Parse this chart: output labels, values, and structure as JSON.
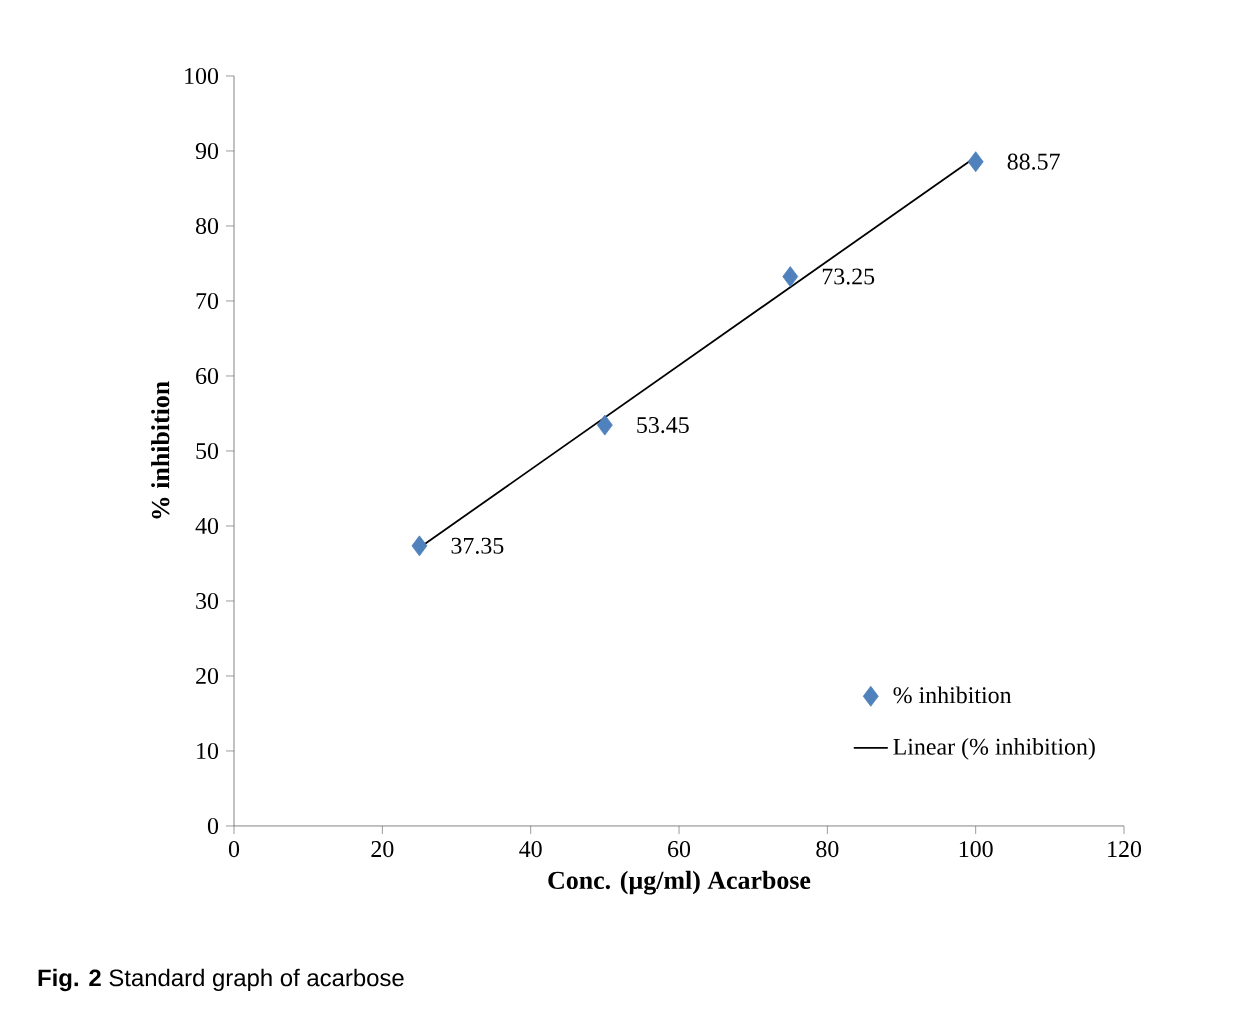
{
  "chart_data": {
    "type": "scatter",
    "xlabel": "Conc. (µg/ml) Acarbose",
    "ylabel": "% inhibition",
    "xlim": [
      0,
      120
    ],
    "xticks": [
      0,
      20,
      40,
      60,
      80,
      100,
      120
    ],
    "ylim": [
      0,
      100
    ],
    "yticks": [
      0,
      10,
      20,
      30,
      40,
      50,
      60,
      70,
      80,
      90,
      100
    ],
    "legend": "bottom right",
    "series": [
      {
        "name": "% inhibition",
        "marker": "diamond",
        "color": "#4f81bd",
        "x": [
          25,
          50,
          75,
          100
        ],
        "values": [
          37.35,
          53.45,
          73.25,
          88.57
        ],
        "value_labels": [
          "37.35",
          "53.45",
          "73.25",
          "88.57"
        ]
      },
      {
        "name": "Linear (% inhibition)",
        "type": "line",
        "color": "#000000",
        "x": [
          25,
          100
        ],
        "values": [
          37.1,
          89.2
        ]
      }
    ],
    "annotations": [
      "**Fig. 2** Standard graph of acarbose"
    ]
  }
}
